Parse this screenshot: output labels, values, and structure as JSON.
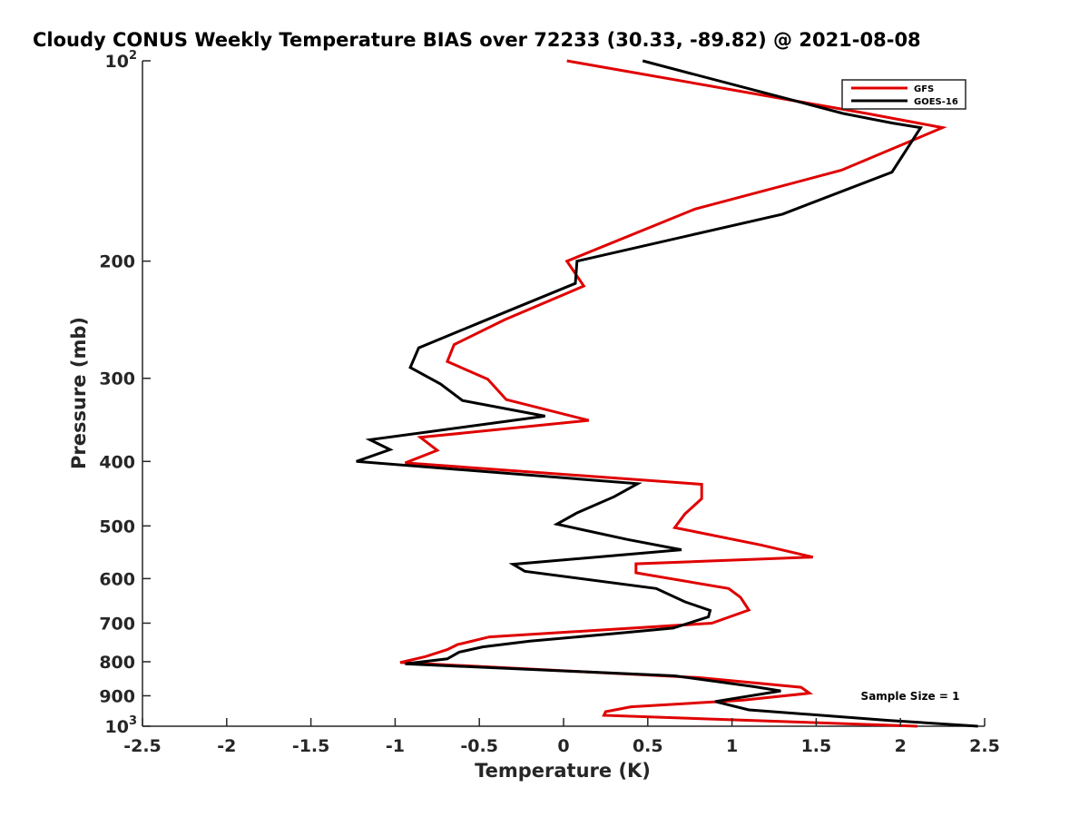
{
  "chart_data": {
    "type": "line",
    "title": "Cloudy CONUS Weekly Temperature BIAS over 72233 (30.33, -89.82) @ 2021-08-08",
    "xlabel": "Temperature (K)",
    "ylabel": "Pressure (mb)",
    "xlim": [
      -2.5,
      2.5
    ],
    "ylim": [
      100,
      1000
    ],
    "yscale": "log",
    "yreversed": true,
    "xticks": [
      "-2.5",
      "-2",
      "-1.5",
      "-1",
      "-0.5",
      "0",
      "0.5",
      "1",
      "1.5",
      "2",
      "2.5"
    ],
    "yticks": [
      {
        "value": 100,
        "label": "10",
        "sup": "2"
      },
      {
        "value": 200,
        "label": "200",
        "sup": ""
      },
      {
        "value": 300,
        "label": "300",
        "sup": ""
      },
      {
        "value": 400,
        "label": "400",
        "sup": ""
      },
      {
        "value": 500,
        "label": "500",
        "sup": ""
      },
      {
        "value": 600,
        "label": "600",
        "sup": ""
      },
      {
        "value": 700,
        "label": "700",
        "sup": ""
      },
      {
        "value": 800,
        "label": "800",
        "sup": ""
      },
      {
        "value": 900,
        "label": "900",
        "sup": ""
      },
      {
        "value": 1000,
        "label": "10",
        "sup": "3"
      }
    ],
    "grid": false,
    "legend_position": "top-right",
    "annotation": "Sample Size = 1",
    "series": [
      {
        "name": "GFS",
        "color": "#e00000",
        "points": [
          [
            0.02,
            100
          ],
          [
            1.8,
            120
          ],
          [
            2.25,
            126
          ],
          [
            1.65,
            146
          ],
          [
            0.78,
            167
          ],
          [
            0.02,
            200
          ],
          [
            0.12,
            218
          ],
          [
            -0.35,
            245
          ],
          [
            -0.65,
            267
          ],
          [
            -0.69,
            283
          ],
          [
            -0.45,
            301
          ],
          [
            -0.34,
            323
          ],
          [
            0.15,
            347
          ],
          [
            -0.85,
            368
          ],
          [
            -0.75,
            385
          ],
          [
            -0.94,
            402
          ],
          [
            0.82,
            433
          ],
          [
            0.82,
            455
          ],
          [
            0.72,
            480
          ],
          [
            0.66,
            503
          ],
          [
            1.17,
            534
          ],
          [
            1.48,
            557
          ],
          [
            0.43,
            570
          ],
          [
            0.43,
            588
          ],
          [
            0.98,
            621
          ],
          [
            1.05,
            640
          ],
          [
            1.1,
            669
          ],
          [
            0.88,
            700
          ],
          [
            -0.44,
            734
          ],
          [
            -0.63,
            754
          ],
          [
            -0.69,
            767
          ],
          [
            -0.82,
            786
          ],
          [
            -0.97,
            802
          ],
          [
            0.8,
            845
          ],
          [
            1.41,
            874
          ],
          [
            1.46,
            892
          ],
          [
            1.06,
            914
          ],
          [
            0.4,
            935
          ],
          [
            0.25,
            951
          ],
          [
            0.24,
            963
          ],
          [
            2.1,
            1000
          ]
        ]
      },
      {
        "name": "GOES-16",
        "color": "#000000",
        "points": [
          [
            0.47,
            100
          ],
          [
            1.66,
            120
          ],
          [
            1.95,
            124
          ],
          [
            2.12,
            126
          ],
          [
            1.95,
            147
          ],
          [
            1.3,
            170
          ],
          [
            0.08,
            200
          ],
          [
            0.07,
            216
          ],
          [
            -0.49,
            247
          ],
          [
            -0.86,
            270
          ],
          [
            -0.91,
            289
          ],
          [
            -0.73,
            306
          ],
          [
            -0.6,
            324
          ],
          [
            -0.11,
            342
          ],
          [
            -1.15,
            371
          ],
          [
            -1.03,
            384
          ],
          [
            -1.23,
            400
          ],
          [
            0.44,
            432
          ],
          [
            0.3,
            452
          ],
          [
            0.08,
            478
          ],
          [
            -0.04,
            497
          ],
          [
            0.38,
            524
          ],
          [
            0.7,
            543
          ],
          [
            -0.3,
            571
          ],
          [
            -0.23,
            585
          ],
          [
            0.55,
            621
          ],
          [
            0.72,
            650
          ],
          [
            0.87,
            670
          ],
          [
            0.86,
            685
          ],
          [
            0.65,
            712
          ],
          [
            0.32,
            725
          ],
          [
            -0.2,
            745
          ],
          [
            -0.48,
            760
          ],
          [
            -0.62,
            774
          ],
          [
            -0.69,
            792
          ],
          [
            -0.94,
            806
          ],
          [
            0.66,
            840
          ],
          [
            1.13,
            872
          ],
          [
            1.29,
            885
          ],
          [
            0.9,
            918
          ],
          [
            1.1,
            945
          ],
          [
            1.93,
            980
          ],
          [
            2.46,
            1000
          ]
        ]
      }
    ]
  }
}
